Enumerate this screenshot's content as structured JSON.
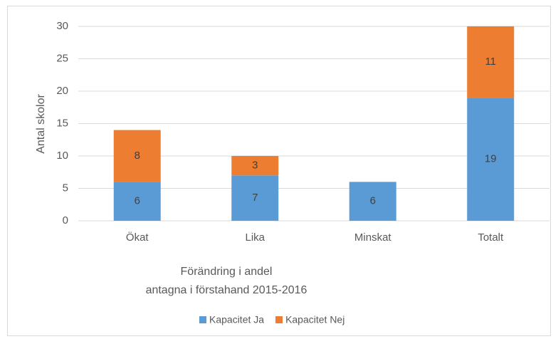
{
  "chart_data": {
    "type": "stacked_bar",
    "categories": [
      "Ökat",
      "Lika",
      "Minskat",
      "Totalt"
    ],
    "series": [
      {
        "name": "Kapacitet Ja",
        "color": "#5b9bd5",
        "values": [
          6,
          7,
          6,
          19
        ]
      },
      {
        "name": "Kapacitet Nej",
        "color": "#ed7d31",
        "values": [
          8,
          3,
          null,
          11
        ]
      }
    ],
    "ylabel": "Antal skolor",
    "xlabel": [
      "Förändring i andel",
      "antagna i förstahand 2015-2016"
    ],
    "ylim": [
      0,
      30
    ],
    "yticks": [
      0,
      5,
      10,
      15,
      20,
      25,
      30
    ],
    "grid": true,
    "legend": "bottom"
  }
}
